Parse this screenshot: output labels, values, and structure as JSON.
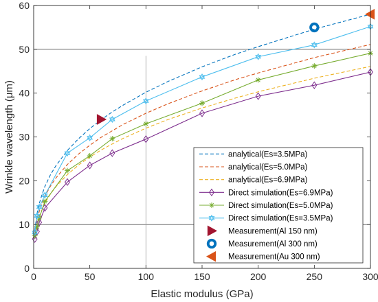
{
  "chart_data": {
    "type": "line",
    "xlabel": "Elastic modulus (GPa)",
    "ylabel": "Wrinkle wavelength (μm)",
    "xlim": [
      0,
      300
    ],
    "ylim": [
      0,
      60
    ],
    "xticks": [
      0,
      50,
      100,
      150,
      200,
      250,
      300
    ],
    "yticks": [
      0,
      10,
      20,
      30,
      40,
      50,
      60
    ],
    "grid": "off",
    "reference_lines": {
      "horizontal": [
        10,
        50
      ],
      "vertical": [
        100
      ]
    },
    "legend_position": "bottom-right",
    "series": [
      {
        "name": "analytical(Es=3.5MPa)",
        "kind": "analytical",
        "color": "#0072BD",
        "x": [
          1,
          3,
          5,
          7,
          10,
          15,
          20,
          30,
          40,
          50,
          60,
          70,
          80,
          100,
          120,
          150,
          180,
          200,
          250,
          300
        ],
        "y": [
          8.7,
          12.6,
          14.8,
          16.5,
          18.7,
          21.4,
          23.5,
          26.9,
          29.6,
          31.9,
          33.9,
          35.7,
          37.3,
          40.2,
          42.7,
          46.0,
          48.9,
          50.6,
          54.6,
          58.0
        ]
      },
      {
        "name": "analytical(Es=5.0MPa)",
        "kind": "analytical",
        "color": "#D95319",
        "x": [
          1,
          3,
          5,
          7,
          10,
          15,
          20,
          30,
          40,
          50,
          60,
          70,
          80,
          100,
          120,
          150,
          180,
          200,
          250,
          300
        ],
        "y": [
          7.7,
          11.1,
          13.0,
          14.5,
          16.5,
          18.8,
          20.7,
          23.7,
          26.1,
          28.1,
          29.9,
          31.4,
          32.9,
          35.4,
          37.6,
          40.5,
          43.1,
          44.6,
          48.1,
          51.1
        ]
      },
      {
        "name": "analytical(Es=6.9MPa)",
        "kind": "analytical",
        "color": "#EDB120",
        "x": [
          1,
          3,
          5,
          7,
          10,
          15,
          20,
          30,
          40,
          50,
          60,
          70,
          80,
          100,
          120,
          150,
          180,
          200,
          250,
          300
        ],
        "y": [
          6.9,
          10.0,
          11.8,
          13.1,
          14.9,
          17.0,
          18.7,
          21.4,
          23.6,
          25.4,
          27.0,
          28.4,
          29.7,
          32.0,
          34.0,
          36.6,
          38.9,
          40.3,
          43.4,
          46.1
        ]
      },
      {
        "name": "Direct simulation(Es=6.9MPa)",
        "kind": "simulation",
        "color": "#7E2F8E",
        "marker": "diamond",
        "x": [
          1,
          3,
          5,
          10,
          30,
          50,
          70,
          100,
          150,
          200,
          250,
          300
        ],
        "y": [
          6.7,
          8.4,
          10.5,
          13.8,
          19.7,
          23.5,
          26.3,
          29.5,
          35.4,
          39.3,
          41.8,
          44.8
        ]
      },
      {
        "name": "Direct simulation(Es=5.0MPa)",
        "kind": "simulation",
        "color": "#77AC30",
        "marker": "asterisk",
        "x": [
          1,
          3,
          5,
          10,
          30,
          50,
          70,
          100,
          150,
          200,
          250,
          300
        ],
        "y": [
          7.5,
          9.5,
          11.5,
          15.3,
          22.3,
          25.7,
          29.6,
          33.0,
          37.7,
          43.0,
          46.2,
          49.1
        ]
      },
      {
        "name": "Direct simulation(Es=3.5MPa)",
        "kind": "simulation",
        "color": "#4DBEEE",
        "marker": "hexagram",
        "x": [
          1,
          3,
          5,
          10,
          30,
          50,
          70,
          100,
          150,
          200,
          250,
          300
        ],
        "y": [
          8.2,
          12.0,
          14.0,
          16.7,
          26.3,
          29.8,
          34.0,
          38.2,
          43.7,
          48.3,
          51.0,
          55.2
        ]
      },
      {
        "name": "Measurement(Al 150 nm)",
        "kind": "measurement",
        "color": "#A2142F",
        "marker": "triangle-right",
        "x": [
          60
        ],
        "y": [
          34
        ]
      },
      {
        "name": "Measurement(Al 300 nm)",
        "kind": "measurement",
        "color": "#0072BD",
        "marker": "ring",
        "x": [
          250
        ],
        "y": [
          55
        ]
      },
      {
        "name": "Measurement(Au 300 nm)",
        "kind": "measurement",
        "color": "#D95319",
        "marker": "triangle-left",
        "x": [
          300
        ],
        "y": [
          58
        ]
      }
    ]
  }
}
